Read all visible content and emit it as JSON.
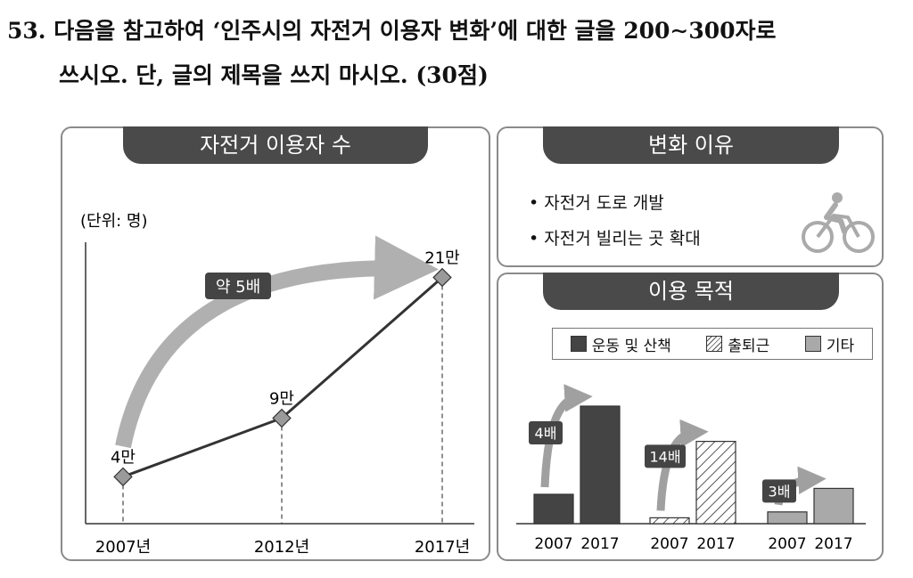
{
  "question": {
    "line1": "53. 다음을 참고하여 ‘인주시의 자전거 이용자 변화’에 대한 글을 200∼300자로",
    "line2": "쓰시오. 단, 글의 제목을 쓰지 마시오. (30점)"
  },
  "chart_data": [
    {
      "type": "line",
      "title": "자전거 이용자 수",
      "unit_label": "(단위: 명)",
      "x": [
        "2007년",
        "2012년",
        "2017년"
      ],
      "y": [
        40000,
        90000,
        210000
      ],
      "point_labels": [
        "4만",
        "9만",
        "21만"
      ],
      "annotation": "약 5배",
      "ylim": [
        0,
        240000
      ],
      "colors": {
        "line": "#333333",
        "marker": "#9a9a9a",
        "arrow": "#b0b0b0",
        "tab": "#4a4a4a"
      }
    },
    {
      "type": "bar",
      "title": "이용 목적",
      "legend": [
        "운동 및 산책",
        "출퇴근",
        "기타"
      ],
      "legend_placement": "top",
      "groups": [
        {
          "category": "운동 및 산책",
          "x": [
            "2007",
            "2017"
          ],
          "values": [
            1.0,
            4.0
          ],
          "annotation": "4배"
        },
        {
          "category": "출퇴근",
          "x": [
            "2007",
            "2017"
          ],
          "values": [
            0.2,
            2.8
          ],
          "annotation": "14배"
        },
        {
          "category": "기타",
          "x": [
            "2007",
            "2017"
          ],
          "values": [
            0.4,
            1.2
          ],
          "annotation": "3배"
        }
      ],
      "colors": {
        "운동 및 산책": "#444444",
        "출퇴근": "hatched",
        "기타": "#a9a9a9"
      }
    }
  ],
  "reasons": {
    "title": "변화 이유",
    "items": [
      "자전거 도로 개발",
      "자전거 빌리는 곳 확대"
    ],
    "icon": "bicycle-rider-icon"
  }
}
